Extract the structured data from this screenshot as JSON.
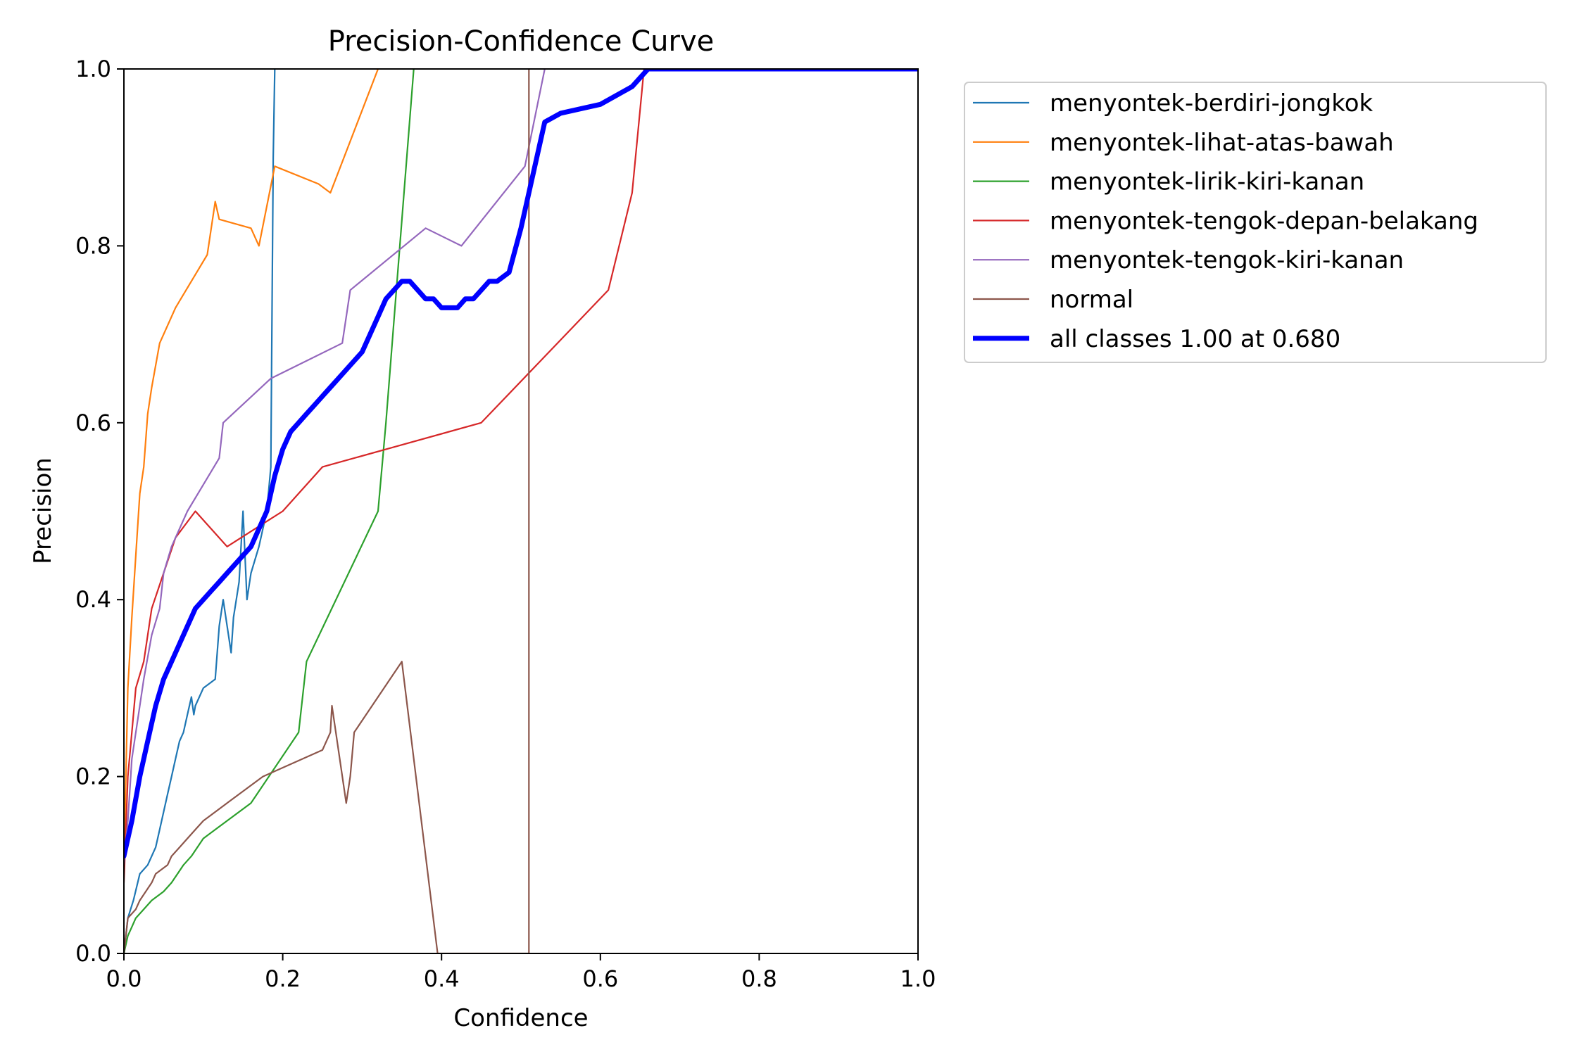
{
  "chart_data": {
    "type": "line",
    "title": "Precision-Confidence Curve",
    "xlabel": "Confidence",
    "ylabel": "Precision",
    "xlim": [
      0,
      1
    ],
    "ylim": [
      0,
      1
    ],
    "xticks": [
      "0.0",
      "0.2",
      "0.4",
      "0.6",
      "0.8",
      "1.0"
    ],
    "yticks": [
      "0.0",
      "0.2",
      "0.4",
      "0.6",
      "0.8",
      "1.0"
    ],
    "grid": false,
    "legend_position": "outside-top-right",
    "series": [
      {
        "name": "menyontek-berdiri-jongkok",
        "color": "#1f77b4",
        "width": "thin",
        "x": [
          0,
          0.005,
          0.012,
          0.02,
          0.03,
          0.04,
          0.045,
          0.05,
          0.055,
          0.06,
          0.065,
          0.07,
          0.075,
          0.08,
          0.085,
          0.088,
          0.09,
          0.1,
          0.115,
          0.12,
          0.125,
          0.135,
          0.138,
          0.145,
          0.15,
          0.155,
          0.16,
          0.17,
          0.18,
          0.185,
          0.188,
          0.19
        ],
        "y": [
          0,
          0.04,
          0.06,
          0.09,
          0.1,
          0.12,
          0.14,
          0.16,
          0.18,
          0.2,
          0.22,
          0.24,
          0.25,
          0.27,
          0.29,
          0.27,
          0.28,
          0.3,
          0.31,
          0.37,
          0.4,
          0.34,
          0.38,
          0.42,
          0.5,
          0.4,
          0.43,
          0.46,
          0.5,
          0.55,
          0.9,
          1.0
        ]
      },
      {
        "name": "menyontek-lihat-atas-bawah",
        "color": "#ff7f0e",
        "width": "thin",
        "x": [
          0,
          0.005,
          0.01,
          0.015,
          0.02,
          0.025,
          0.03,
          0.035,
          0.045,
          0.065,
          0.105,
          0.115,
          0.12,
          0.16,
          0.17,
          0.19,
          0.245,
          0.26,
          0.32
        ],
        "y": [
          0.1,
          0.3,
          0.38,
          0.45,
          0.52,
          0.55,
          0.61,
          0.64,
          0.69,
          0.73,
          0.79,
          0.85,
          0.83,
          0.82,
          0.8,
          0.89,
          0.87,
          0.86,
          1.0
        ]
      },
      {
        "name": "menyontek-lirik-kiri-kanan",
        "color": "#2ca02c",
        "width": "thin",
        "x": [
          0,
          0.005,
          0.01,
          0.015,
          0.025,
          0.035,
          0.05,
          0.06,
          0.075,
          0.085,
          0.1,
          0.115,
          0.16,
          0.22,
          0.23,
          0.32,
          0.33,
          0.365
        ],
        "y": [
          0,
          0.02,
          0.03,
          0.04,
          0.05,
          0.06,
          0.07,
          0.08,
          0.1,
          0.11,
          0.13,
          0.14,
          0.17,
          0.25,
          0.33,
          0.5,
          0.6,
          1.0
        ]
      },
      {
        "name": "menyontek-tengok-depan-belakang",
        "color": "#d62728",
        "width": "thin",
        "x": [
          0,
          0.005,
          0.01,
          0.015,
          0.025,
          0.035,
          0.05,
          0.065,
          0.09,
          0.13,
          0.2,
          0.25,
          0.45,
          0.61,
          0.64,
          0.655,
          1.0
        ],
        "y": [
          0.08,
          0.2,
          0.25,
          0.3,
          0.33,
          0.39,
          0.43,
          0.47,
          0.5,
          0.46,
          0.5,
          0.55,
          0.6,
          0.75,
          0.86,
          1.0,
          1.0
        ]
      },
      {
        "name": "menyontek-tengok-kiri-kanan",
        "color": "#9467bd",
        "width": "thin",
        "x": [
          0,
          0.005,
          0.01,
          0.02,
          0.025,
          0.035,
          0.045,
          0.05,
          0.06,
          0.065,
          0.08,
          0.1,
          0.12,
          0.125,
          0.185,
          0.275,
          0.285,
          0.38,
          0.425,
          0.505,
          0.53
        ],
        "y": [
          0.1,
          0.15,
          0.22,
          0.28,
          0.31,
          0.36,
          0.39,
          0.43,
          0.46,
          0.47,
          0.5,
          0.53,
          0.56,
          0.6,
          0.65,
          0.69,
          0.75,
          0.82,
          0.8,
          0.89,
          1.0
        ]
      },
      {
        "name": "normal",
        "color": "#8c564b",
        "width": "thin",
        "x": [
          0,
          0.005,
          0.015,
          0.02,
          0.035,
          0.04,
          0.055,
          0.06,
          0.07,
          0.08,
          0.09,
          0.1,
          0.13,
          0.175,
          0.25,
          0.26,
          0.262,
          0.28,
          0.285,
          0.29,
          0.35,
          0.395,
          0.5,
          0.51,
          0.51,
          0.51
        ],
        "y": [
          0,
          0.04,
          0.05,
          0.06,
          0.08,
          0.09,
          0.1,
          0.11,
          0.12,
          0.13,
          0.14,
          0.15,
          0.17,
          0.2,
          0.23,
          0.25,
          0.28,
          0.17,
          0.2,
          0.25,
          0.33,
          0,
          0,
          0,
          1.0,
          0
        ]
      },
      {
        "name": "all classes 1.00 at 0.680",
        "color": "#0000ff",
        "width": "thick",
        "x": [
          0,
          0.01,
          0.02,
          0.03,
          0.04,
          0.05,
          0.06,
          0.07,
          0.08,
          0.09,
          0.1,
          0.11,
          0.12,
          0.13,
          0.14,
          0.15,
          0.16,
          0.17,
          0.18,
          0.19,
          0.2,
          0.21,
          0.22,
          0.23,
          0.24,
          0.25,
          0.26,
          0.27,
          0.28,
          0.29,
          0.3,
          0.31,
          0.32,
          0.33,
          0.34,
          0.35,
          0.36,
          0.37,
          0.38,
          0.39,
          0.4,
          0.41,
          0.42,
          0.43,
          0.44,
          0.45,
          0.46,
          0.47,
          0.485,
          0.5,
          0.515,
          0.53,
          0.55,
          0.6,
          0.62,
          0.64,
          0.66,
          0.68,
          1.0
        ],
        "y": [
          0.11,
          0.15,
          0.2,
          0.24,
          0.28,
          0.31,
          0.33,
          0.35,
          0.37,
          0.39,
          0.4,
          0.41,
          0.42,
          0.43,
          0.44,
          0.45,
          0.46,
          0.48,
          0.5,
          0.54,
          0.57,
          0.59,
          0.6,
          0.61,
          0.62,
          0.63,
          0.64,
          0.65,
          0.66,
          0.67,
          0.68,
          0.7,
          0.72,
          0.74,
          0.75,
          0.76,
          0.76,
          0.75,
          0.74,
          0.74,
          0.73,
          0.73,
          0.73,
          0.74,
          0.74,
          0.75,
          0.76,
          0.76,
          0.77,
          0.82,
          0.88,
          0.94,
          0.95,
          0.96,
          0.97,
          0.98,
          1.0,
          1.0,
          1.0
        ]
      }
    ]
  }
}
